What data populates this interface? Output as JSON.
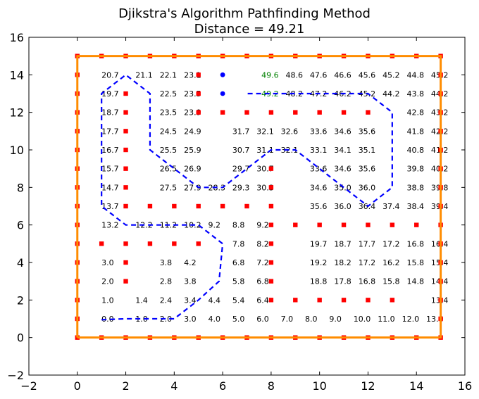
{
  "chart_data": {
    "type": "scatter",
    "title": "Djikstra's Algorithm Pathfinding Method",
    "subtitle": "Distance = 49.21",
    "xlim": [
      -2,
      16
    ],
    "ylim": [
      -2,
      16
    ],
    "xticks": [
      "−2",
      "0",
      "2",
      "4",
      "6",
      "8",
      "10",
      "12",
      "14",
      "16"
    ],
    "yticks": [
      "−2",
      "0",
      "2",
      "4",
      "6",
      "8",
      "10",
      "12",
      "14",
      "16"
    ],
    "grid": false,
    "colors": {
      "boundary": "#ff8c00",
      "obstacle": "#ff0000",
      "path": "#0000ff",
      "label": "#000000",
      "highlight_label": "#008000",
      "endpoint": "#0000ff"
    },
    "boundary": [
      [
        0,
        0
      ],
      [
        15,
        0
      ],
      [
        15,
        15
      ],
      [
        0,
        15
      ],
      [
        0,
        0
      ]
    ],
    "obstacles": [
      [
        0,
        0
      ],
      [
        1,
        0
      ],
      [
        2,
        0
      ],
      [
        3,
        0
      ],
      [
        4,
        0
      ],
      [
        5,
        0
      ],
      [
        6,
        0
      ],
      [
        7,
        0
      ],
      [
        8,
        0
      ],
      [
        9,
        0
      ],
      [
        10,
        0
      ],
      [
        11,
        0
      ],
      [
        12,
        0
      ],
      [
        13,
        0
      ],
      [
        14,
        0
      ],
      [
        15,
        0
      ],
      [
        0,
        15
      ],
      [
        1,
        15
      ],
      [
        2,
        15
      ],
      [
        3,
        15
      ],
      [
        4,
        15
      ],
      [
        5,
        15
      ],
      [
        6,
        15
      ],
      [
        7,
        15
      ],
      [
        8,
        15
      ],
      [
        9,
        15
      ],
      [
        10,
        15
      ],
      [
        11,
        15
      ],
      [
        12,
        15
      ],
      [
        13,
        15
      ],
      [
        14,
        15
      ],
      [
        15,
        15
      ],
      [
        0,
        1
      ],
      [
        0,
        2
      ],
      [
        0,
        3
      ],
      [
        0,
        4
      ],
      [
        0,
        5
      ],
      [
        0,
        6
      ],
      [
        0,
        7
      ],
      [
        0,
        8
      ],
      [
        0,
        9
      ],
      [
        0,
        10
      ],
      [
        0,
        11
      ],
      [
        0,
        12
      ],
      [
        0,
        13
      ],
      [
        0,
        14
      ],
      [
        15,
        1
      ],
      [
        15,
        2
      ],
      [
        15,
        3
      ],
      [
        15,
        4
      ],
      [
        15,
        5
      ],
      [
        15,
        6
      ],
      [
        15,
        7
      ],
      [
        15,
        8
      ],
      [
        15,
        9
      ],
      [
        15,
        10
      ],
      [
        15,
        11
      ],
      [
        15,
        12
      ],
      [
        15,
        13
      ],
      [
        15,
        14
      ],
      [
        2,
        13
      ],
      [
        2,
        12
      ],
      [
        2,
        11
      ],
      [
        2,
        10
      ],
      [
        2,
        9
      ],
      [
        2,
        8
      ],
      [
        2,
        7
      ],
      [
        3,
        7
      ],
      [
        4,
        7
      ],
      [
        5,
        7
      ],
      [
        6,
        7
      ],
      [
        7,
        7
      ],
      [
        5,
        14
      ],
      [
        5,
        13
      ],
      [
        5,
        12
      ],
      [
        6,
        12
      ],
      [
        7,
        12
      ],
      [
        8,
        12
      ],
      [
        9,
        12
      ],
      [
        10,
        12
      ],
      [
        11,
        12
      ],
      [
        12,
        12
      ],
      [
        8,
        9
      ],
      [
        8,
        8
      ],
      [
        8,
        7
      ],
      [
        8,
        6
      ],
      [
        8,
        5
      ],
      [
        8,
        4
      ],
      [
        8,
        3
      ],
      [
        8,
        2
      ],
      [
        9,
        6
      ],
      [
        10,
        6
      ],
      [
        11,
        6
      ],
      [
        12,
        6
      ],
      [
        13,
        6
      ],
      [
        14,
        6
      ],
      [
        1,
        5
      ],
      [
        2,
        5
      ],
      [
        3,
        5
      ],
      [
        4,
        5
      ],
      [
        5,
        5
      ],
      [
        2,
        4
      ],
      [
        2,
        3
      ],
      [
        9,
        2
      ],
      [
        10,
        2
      ],
      [
        11,
        2
      ],
      [
        12,
        2
      ],
      [
        13,
        2
      ]
    ],
    "path": [
      [
        1,
        0.95
      ],
      [
        2,
        1
      ],
      [
        3,
        1
      ],
      [
        4,
        1
      ],
      [
        5,
        2
      ],
      [
        5.85,
        3
      ],
      [
        6,
        5
      ],
      [
        5,
        6
      ],
      [
        4,
        6
      ],
      [
        3,
        6
      ],
      [
        2,
        6
      ],
      [
        1,
        7
      ],
      [
        1,
        8
      ],
      [
        1,
        9
      ],
      [
        1,
        10
      ],
      [
        1,
        11
      ],
      [
        1,
        12
      ],
      [
        1,
        13
      ],
      [
        2,
        14
      ],
      [
        3,
        13
      ],
      [
        3,
        12
      ],
      [
        3,
        11
      ],
      [
        3,
        10
      ],
      [
        4,
        9
      ],
      [
        5,
        8
      ],
      [
        6,
        8
      ],
      [
        7,
        9
      ],
      [
        8,
        10
      ],
      [
        9,
        10
      ],
      [
        10,
        9
      ],
      [
        11,
        8
      ],
      [
        12,
        7
      ],
      [
        13,
        8
      ],
      [
        13,
        9
      ],
      [
        13,
        10
      ],
      [
        13,
        11
      ],
      [
        13,
        12
      ],
      [
        12,
        13
      ],
      [
        11,
        13
      ],
      [
        10,
        13
      ],
      [
        9,
        13
      ],
      [
        8,
        13
      ],
      [
        7,
        13
      ]
    ],
    "endpoints": [
      [
        6,
        14
      ],
      [
        6,
        13
      ]
    ],
    "labels": [
      {
        "x": 1,
        "y": 14,
        "text": "20.7"
      },
      {
        "x": 2.4,
        "y": 14,
        "text": "21.1"
      },
      {
        "x": 3.4,
        "y": 14,
        "text": "22.1"
      },
      {
        "x": 4.4,
        "y": 14,
        "text": "23.1"
      },
      {
        "x": 7.6,
        "y": 14,
        "text": "49.6",
        "hl": true
      },
      {
        "x": 8.6,
        "y": 14,
        "text": "48.6"
      },
      {
        "x": 9.6,
        "y": 14,
        "text": "47.6"
      },
      {
        "x": 10.6,
        "y": 14,
        "text": "46.6"
      },
      {
        "x": 11.6,
        "y": 14,
        "text": "45.6"
      },
      {
        "x": 12.6,
        "y": 14,
        "text": "45.2"
      },
      {
        "x": 13.6,
        "y": 14,
        "text": "44.8"
      },
      {
        "x": 14.6,
        "y": 14,
        "text": "45.2"
      },
      {
        "x": 1,
        "y": 13,
        "text": "19.7"
      },
      {
        "x": 3.4,
        "y": 13,
        "text": "22.5"
      },
      {
        "x": 4.4,
        "y": 13,
        "text": "23.5"
      },
      {
        "x": 7.6,
        "y": 13,
        "text": "49.2",
        "hl": true
      },
      {
        "x": 8.6,
        "y": 13,
        "text": "48.2"
      },
      {
        "x": 9.6,
        "y": 13,
        "text": "47.2"
      },
      {
        "x": 10.6,
        "y": 13,
        "text": "46.2"
      },
      {
        "x": 11.6,
        "y": 13,
        "text": "45.2"
      },
      {
        "x": 12.6,
        "y": 13,
        "text": "44.2"
      },
      {
        "x": 13.6,
        "y": 13,
        "text": "43.8"
      },
      {
        "x": 14.6,
        "y": 13,
        "text": "44.2"
      },
      {
        "x": 1,
        "y": 12,
        "text": "18.7"
      },
      {
        "x": 3.4,
        "y": 12,
        "text": "23.5"
      },
      {
        "x": 4.4,
        "y": 12,
        "text": "23.9"
      },
      {
        "x": 13.6,
        "y": 12,
        "text": "42.8"
      },
      {
        "x": 14.6,
        "y": 12,
        "text": "43.2"
      },
      {
        "x": 1,
        "y": 11,
        "text": "17.7"
      },
      {
        "x": 3.4,
        "y": 11,
        "text": "24.5"
      },
      {
        "x": 4.4,
        "y": 11,
        "text": "24.9"
      },
      {
        "x": 6.4,
        "y": 11,
        "text": "31.7"
      },
      {
        "x": 7.4,
        "y": 11,
        "text": "32.1"
      },
      {
        "x": 8.4,
        "y": 11,
        "text": "32.6"
      },
      {
        "x": 9.6,
        "y": 11,
        "text": "33.6"
      },
      {
        "x": 10.6,
        "y": 11,
        "text": "34.6"
      },
      {
        "x": 11.6,
        "y": 11,
        "text": "35.6"
      },
      {
        "x": 13.6,
        "y": 11,
        "text": "41.8"
      },
      {
        "x": 14.6,
        "y": 11,
        "text": "42.2"
      },
      {
        "x": 1,
        "y": 10,
        "text": "16.7"
      },
      {
        "x": 3.4,
        "y": 10,
        "text": "25.5"
      },
      {
        "x": 4.4,
        "y": 10,
        "text": "25.9"
      },
      {
        "x": 6.4,
        "y": 10,
        "text": "30.7"
      },
      {
        "x": 7.4,
        "y": 10,
        "text": "31.1"
      },
      {
        "x": 8.4,
        "y": 10,
        "text": "32.1"
      },
      {
        "x": 9.6,
        "y": 10,
        "text": "33.1"
      },
      {
        "x": 10.6,
        "y": 10,
        "text": "34.1"
      },
      {
        "x": 11.6,
        "y": 10,
        "text": "35.1"
      },
      {
        "x": 13.6,
        "y": 10,
        "text": "40.8"
      },
      {
        "x": 14.6,
        "y": 10,
        "text": "41.2"
      },
      {
        "x": 1,
        "y": 9,
        "text": "15.7"
      },
      {
        "x": 3.4,
        "y": 9,
        "text": "26.5"
      },
      {
        "x": 4.4,
        "y": 9,
        "text": "26.9"
      },
      {
        "x": 6.4,
        "y": 9,
        "text": "29.7"
      },
      {
        "x": 7.4,
        "y": 9,
        "text": "30.7"
      },
      {
        "x": 9.6,
        "y": 9,
        "text": "33.6"
      },
      {
        "x": 10.6,
        "y": 9,
        "text": "34.6"
      },
      {
        "x": 11.6,
        "y": 9,
        "text": "35.6"
      },
      {
        "x": 13.6,
        "y": 9,
        "text": "39.8"
      },
      {
        "x": 14.6,
        "y": 9,
        "text": "40.2"
      },
      {
        "x": 1,
        "y": 8,
        "text": "14.7"
      },
      {
        "x": 3.4,
        "y": 8,
        "text": "27.5"
      },
      {
        "x": 4.4,
        "y": 8,
        "text": "27.9"
      },
      {
        "x": 5.4,
        "y": 8,
        "text": "28.3"
      },
      {
        "x": 6.4,
        "y": 8,
        "text": "29.3"
      },
      {
        "x": 7.4,
        "y": 8,
        "text": "30.3"
      },
      {
        "x": 9.6,
        "y": 8,
        "text": "34.6"
      },
      {
        "x": 10.6,
        "y": 8,
        "text": "35.0"
      },
      {
        "x": 11.6,
        "y": 8,
        "text": "36.0"
      },
      {
        "x": 13.6,
        "y": 8,
        "text": "38.8"
      },
      {
        "x": 14.6,
        "y": 8,
        "text": "39.8"
      },
      {
        "x": 1,
        "y": 7,
        "text": "13.7"
      },
      {
        "x": 9.6,
        "y": 7,
        "text": "35.6"
      },
      {
        "x": 10.6,
        "y": 7,
        "text": "36.0"
      },
      {
        "x": 11.6,
        "y": 7,
        "text": "36.4"
      },
      {
        "x": 12.6,
        "y": 7,
        "text": "37.4"
      },
      {
        "x": 13.6,
        "y": 7,
        "text": "38.4"
      },
      {
        "x": 14.6,
        "y": 7,
        "text": "39.4"
      },
      {
        "x": 1,
        "y": 6,
        "text": "13.2"
      },
      {
        "x": 2.4,
        "y": 6,
        "text": "12.2"
      },
      {
        "x": 3.4,
        "y": 6,
        "text": "11.2"
      },
      {
        "x": 4.4,
        "y": 6,
        "text": "10.2"
      },
      {
        "x": 5.4,
        "y": 6,
        "text": "9.2"
      },
      {
        "x": 6.4,
        "y": 6,
        "text": "8.8"
      },
      {
        "x": 7.4,
        "y": 6,
        "text": "9.2"
      },
      {
        "x": 6.4,
        "y": 5,
        "text": "7.8"
      },
      {
        "x": 7.4,
        "y": 5,
        "text": "8.2"
      },
      {
        "x": 9.6,
        "y": 5,
        "text": "19.7"
      },
      {
        "x": 10.6,
        "y": 5,
        "text": "18.7"
      },
      {
        "x": 11.6,
        "y": 5,
        "text": "17.7"
      },
      {
        "x": 12.6,
        "y": 5,
        "text": "17.2"
      },
      {
        "x": 13.6,
        "y": 5,
        "text": "16.8"
      },
      {
        "x": 14.6,
        "y": 5,
        "text": "16.4"
      },
      {
        "x": 1,
        "y": 4,
        "text": "3.0"
      },
      {
        "x": 3.4,
        "y": 4,
        "text": "3.8"
      },
      {
        "x": 4.4,
        "y": 4,
        "text": "4.2"
      },
      {
        "x": 6.4,
        "y": 4,
        "text": "6.8"
      },
      {
        "x": 7.4,
        "y": 4,
        "text": "7.2"
      },
      {
        "x": 9.6,
        "y": 4,
        "text": "19.2"
      },
      {
        "x": 10.6,
        "y": 4,
        "text": "18.2"
      },
      {
        "x": 11.6,
        "y": 4,
        "text": "17.2"
      },
      {
        "x": 12.6,
        "y": 4,
        "text": "16.2"
      },
      {
        "x": 13.6,
        "y": 4,
        "text": "15.8"
      },
      {
        "x": 14.6,
        "y": 4,
        "text": "15.4"
      },
      {
        "x": 1,
        "y": 3,
        "text": "2.0"
      },
      {
        "x": 3.4,
        "y": 3,
        "text": "2.8"
      },
      {
        "x": 4.4,
        "y": 3,
        "text": "3.8"
      },
      {
        "x": 6.4,
        "y": 3,
        "text": "5.8"
      },
      {
        "x": 7.4,
        "y": 3,
        "text": "6.8"
      },
      {
        "x": 9.6,
        "y": 3,
        "text": "18.8"
      },
      {
        "x": 10.6,
        "y": 3,
        "text": "17.8"
      },
      {
        "x": 11.6,
        "y": 3,
        "text": "16.8"
      },
      {
        "x": 12.6,
        "y": 3,
        "text": "15.8"
      },
      {
        "x": 13.6,
        "y": 3,
        "text": "14.8"
      },
      {
        "x": 14.6,
        "y": 3,
        "text": "14.4"
      },
      {
        "x": 1,
        "y": 2,
        "text": "1.0"
      },
      {
        "x": 2.4,
        "y": 2,
        "text": "1.4"
      },
      {
        "x": 3.4,
        "y": 2,
        "text": "2.4"
      },
      {
        "x": 4.4,
        "y": 2,
        "text": "3.4"
      },
      {
        "x": 5.4,
        "y": 2,
        "text": "4.4"
      },
      {
        "x": 6.4,
        "y": 2,
        "text": "5.4"
      },
      {
        "x": 7.4,
        "y": 2,
        "text": "6.4"
      },
      {
        "x": 14.6,
        "y": 2,
        "text": "13.4"
      },
      {
        "x": 1,
        "y": 1,
        "text": "0.0"
      },
      {
        "x": 2.4,
        "y": 1,
        "text": "1.0"
      },
      {
        "x": 3.4,
        "y": 1,
        "text": "2.0"
      },
      {
        "x": 4.4,
        "y": 1,
        "text": "3.0"
      },
      {
        "x": 5.4,
        "y": 1,
        "text": "4.0"
      },
      {
        "x": 6.4,
        "y": 1,
        "text": "5.0"
      },
      {
        "x": 7.4,
        "y": 1,
        "text": "6.0"
      },
      {
        "x": 8.4,
        "y": 1,
        "text": "7.0"
      },
      {
        "x": 9.4,
        "y": 1,
        "text": "8.0"
      },
      {
        "x": 10.4,
        "y": 1,
        "text": "9.0"
      },
      {
        "x": 11.4,
        "y": 1,
        "text": "10.0"
      },
      {
        "x": 12.4,
        "y": 1,
        "text": "11.0"
      },
      {
        "x": 13.4,
        "y": 1,
        "text": "12.0"
      },
      {
        "x": 14.4,
        "y": 1,
        "text": "13.0"
      }
    ]
  }
}
